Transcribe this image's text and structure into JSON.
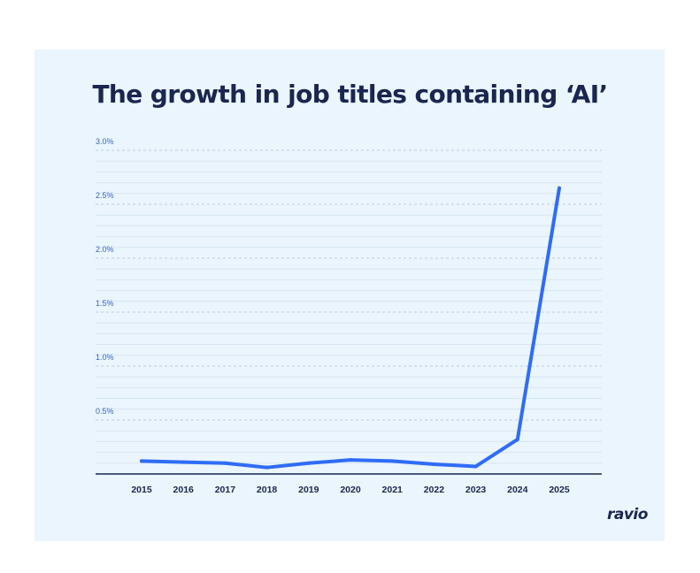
{
  "title": "The growth in job titles containing ‘AI’",
  "brand": "ravio",
  "colors": {
    "background": "#eaf5fd",
    "line": "#2f6cf6",
    "title": "#1b2650",
    "tick_label": "#3a66c4",
    "gridline": "#c5d8ea"
  },
  "chart_data": {
    "type": "line",
    "title": "The growth in job titles containing ‘AI’",
    "xlabel": "",
    "ylabel": "",
    "x": [
      "2015",
      "2016",
      "2017",
      "2018",
      "2019",
      "2020",
      "2021",
      "2022",
      "2023",
      "2024",
      "2025"
    ],
    "series": [
      {
        "values": [
          0.12,
          0.11,
          0.1,
          0.06,
          0.1,
          0.13,
          0.12,
          0.09,
          0.07,
          0.32,
          2.65
        ]
      }
    ],
    "ylim": [
      0,
      3.0
    ],
    "yticks": [
      0.5,
      1.0,
      1.5,
      2.0,
      2.5,
      3.0
    ],
    "ytick_labels": [
      "0.5%",
      "1.0%",
      "1.5%",
      "2.0%",
      "2.5%",
      "3.0%"
    ],
    "grid": true,
    "legend": "none"
  }
}
